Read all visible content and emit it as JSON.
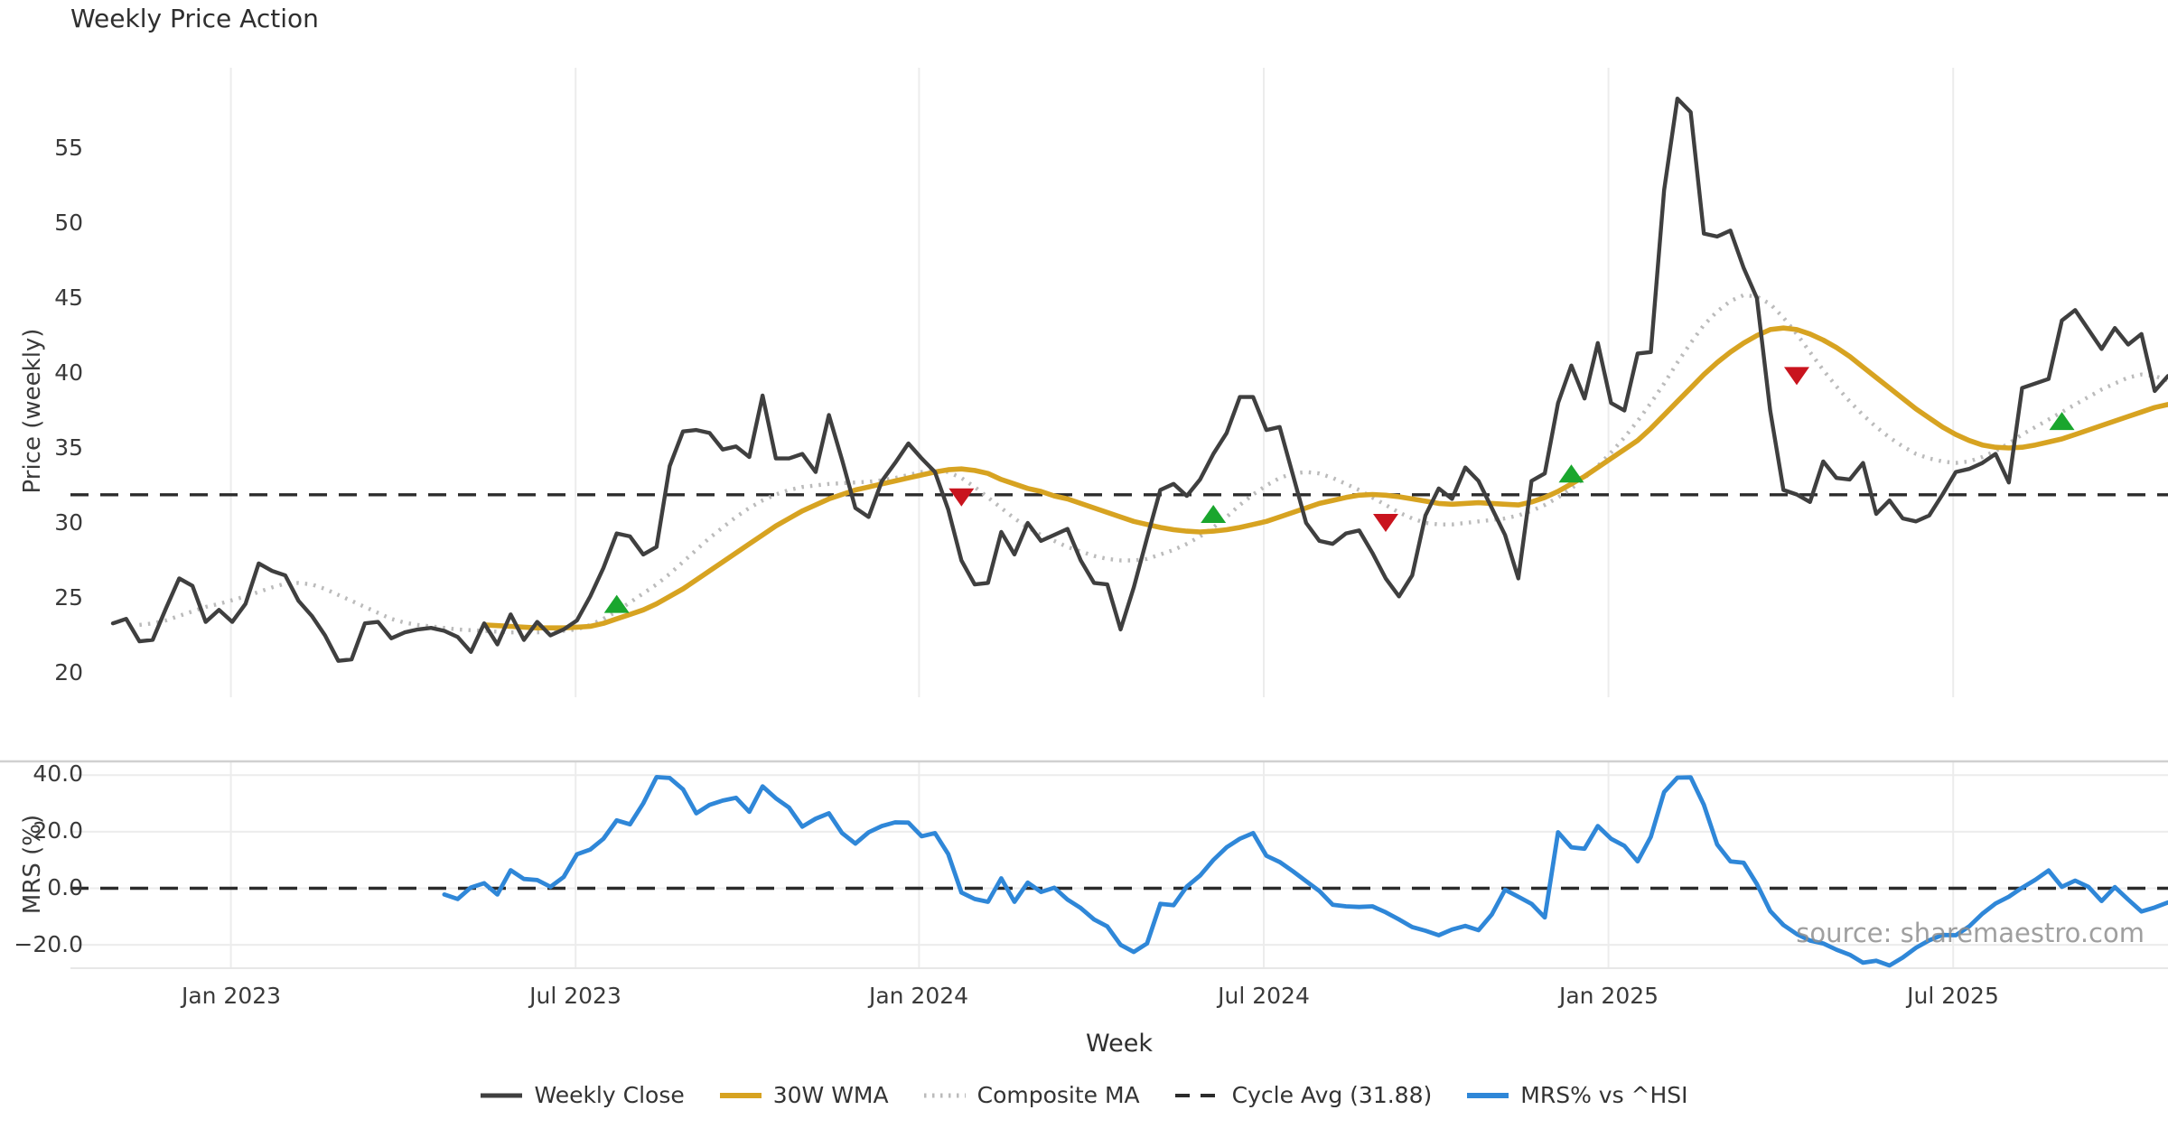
{
  "title": "Weekly Price Action",
  "source_note": "source: sharemaestro.com",
  "axes": {
    "price_label": "Price (weekly)",
    "price_ticks": [
      "55",
      "50",
      "45",
      "40",
      "35",
      "30",
      "25",
      "20"
    ],
    "mrs_label": "MRS (%)",
    "mrs_ticks": [
      "40.0",
      "20.0",
      "0.0",
      "−20.0"
    ],
    "x_label": "Week",
    "x_ticks": [
      "Jan 2023",
      "Jul 2023",
      "Jan 2024",
      "Jul 2024",
      "Jan 2025",
      "Jul 2025"
    ]
  },
  "legend": {
    "weekly_close": "Weekly Close",
    "wma": "30W WMA",
    "composite": "Composite MA",
    "cycle_avg": "Cycle Avg (31.88)",
    "mrs": "MRS% vs ^HSI"
  },
  "colors": {
    "close": "#3f3f3f",
    "wma": "#d7a321",
    "composite": "#bbbbbb",
    "cycle_avg": "#2b2b2b",
    "mrs": "#2f87d8",
    "buy_marker": "#1aa62e",
    "sell_marker": "#c9141e",
    "grid": "#ececec",
    "spine": "#d0d0d0"
  },
  "chart_data": [
    {
      "type": "line",
      "title": "Weekly Price Action",
      "xlabel": "Week",
      "ylabel": "Price (weekly)",
      "ylim": [
        18.5,
        60.4
      ],
      "grid": "vertical-only",
      "x_tick_labels": [
        "Jan 2023",
        "Jul 2023",
        "Jan 2024",
        "Jul 2024",
        "Jan 2025",
        "Jul 2025"
      ],
      "x_tick_weeks": [
        8.9,
        34.9,
        60.8,
        86.8,
        112.8,
        138.8
      ],
      "cycle_avg_value": 31.88,
      "series": [
        {
          "name": "Weekly Close",
          "start_week": 0,
          "values": [
            23.3,
            23.6,
            22.1,
            22.2,
            24.3,
            26.3,
            25.8,
            23.4,
            24.2,
            23.4,
            24.6,
            27.3,
            26.8,
            26.5,
            24.8,
            23.8,
            22.5,
            20.8,
            20.9,
            23.3,
            23.4,
            22.3,
            22.7,
            22.9,
            23.0,
            22.8,
            22.4,
            21.4,
            23.3,
            21.9,
            23.9,
            22.2,
            23.4,
            22.5,
            22.9,
            23.5,
            25.1,
            27.0,
            29.3,
            29.1,
            27.9,
            28.4,
            33.8,
            36.1,
            36.2,
            36.0,
            34.9,
            35.1,
            34.4,
            38.5,
            34.3,
            34.3,
            34.6,
            33.4,
            37.2,
            34.2,
            31.0,
            30.4,
            32.8,
            34.0,
            35.3,
            34.3,
            33.4,
            30.9,
            27.5,
            25.9,
            26.0,
            29.4,
            27.9,
            30.0,
            28.8,
            29.2,
            29.6,
            27.5,
            26.0,
            25.9,
            22.9,
            25.7,
            29.0,
            32.2,
            32.6,
            31.8,
            32.9,
            34.6,
            36.0,
            38.4,
            38.4,
            36.2,
            36.4,
            33.2,
            30.0,
            28.8,
            28.6,
            29.3,
            29.5,
            28.0,
            26.3,
            25.1,
            26.5,
            30.5,
            32.3,
            31.6,
            33.7,
            32.8,
            31.0,
            29.2,
            26.3,
            32.8,
            33.3,
            38.0,
            40.5,
            38.3,
            42.0,
            38.0,
            37.5,
            41.3,
            41.4,
            52.2,
            58.3,
            57.4,
            49.3,
            49.1,
            49.5,
            47.0,
            45.0,
            37.5,
            32.2,
            31.9,
            31.4,
            34.1,
            33.0,
            32.9,
            34.0,
            30.6,
            31.5,
            30.3,
            30.1,
            30.5,
            31.9,
            33.4,
            33.6,
            34.0,
            34.6,
            32.7,
            39.0,
            39.3,
            39.6,
            43.5,
            44.2,
            42.9,
            41.6,
            43.0,
            41.9,
            42.6,
            38.8,
            39.8
          ]
        },
        {
          "name": "30W WMA",
          "start_week": 28,
          "values": [
            23.2,
            23.15,
            23.1,
            23.05,
            23.0,
            23.0,
            23.0,
            23.05,
            23.1,
            23.3,
            23.6,
            23.9,
            24.2,
            24.6,
            25.1,
            25.6,
            26.2,
            26.8,
            27.4,
            28.0,
            28.6,
            29.2,
            29.8,
            30.3,
            30.8,
            31.2,
            31.6,
            31.9,
            32.2,
            32.4,
            32.6,
            32.8,
            33.0,
            33.2,
            33.4,
            33.55,
            33.6,
            33.5,
            33.3,
            32.9,
            32.6,
            32.3,
            32.1,
            31.8,
            31.6,
            31.3,
            31.0,
            30.7,
            30.4,
            30.1,
            29.9,
            29.7,
            29.55,
            29.45,
            29.4,
            29.45,
            29.55,
            29.7,
            29.9,
            30.1,
            30.4,
            30.7,
            31.0,
            31.3,
            31.5,
            31.7,
            31.85,
            31.9,
            31.85,
            31.75,
            31.6,
            31.45,
            31.3,
            31.25,
            31.3,
            31.35,
            31.3,
            31.25,
            31.2,
            31.4,
            31.7,
            32.1,
            32.6,
            33.1,
            33.7,
            34.3,
            34.9,
            35.5,
            36.3,
            37.2,
            38.1,
            39.0,
            39.9,
            40.7,
            41.4,
            42.0,
            42.5,
            42.9,
            43.0,
            42.9,
            42.6,
            42.2,
            41.7,
            41.1,
            40.4,
            39.7,
            39.0,
            38.3,
            37.6,
            37.0,
            36.4,
            35.9,
            35.5,
            35.2,
            35.05,
            35.0,
            35.05,
            35.2,
            35.4,
            35.6,
            35.9,
            36.2,
            36.5,
            36.8,
            37.1,
            37.4,
            37.7,
            37.9
          ]
        },
        {
          "name": "Composite MA",
          "start_week": 2,
          "values": [
            23.2,
            23.3,
            23.5,
            23.8,
            24.1,
            24.4,
            24.6,
            24.85,
            25.1,
            25.4,
            25.7,
            25.95,
            26.0,
            25.9,
            25.6,
            25.2,
            24.8,
            24.4,
            24.0,
            23.6,
            23.35,
            23.2,
            23.1,
            23.0,
            22.9,
            22.85,
            22.8,
            22.75,
            22.7,
            22.7,
            22.7,
            22.75,
            22.8,
            22.9,
            23.2,
            23.6,
            24.1,
            24.7,
            25.3,
            25.9,
            26.6,
            27.4,
            28.2,
            29.0,
            29.7,
            30.4,
            31.0,
            31.5,
            31.9,
            32.2,
            32.4,
            32.5,
            32.6,
            32.65,
            32.7,
            32.75,
            32.85,
            33.0,
            33.2,
            33.4,
            33.5,
            33.4,
            33.0,
            32.4,
            31.7,
            31.0,
            30.3,
            29.7,
            29.2,
            28.8,
            28.4,
            28.1,
            27.8,
            27.6,
            27.5,
            27.5,
            27.6,
            27.9,
            28.2,
            28.6,
            29.1,
            29.7,
            30.4,
            31.2,
            31.9,
            32.5,
            33.0,
            33.3,
            33.4,
            33.3,
            33.0,
            32.6,
            32.2,
            31.7,
            31.2,
            30.7,
            30.3,
            30.0,
            29.9,
            29.9,
            30.0,
            30.1,
            30.2,
            30.3,
            30.5,
            30.8,
            31.2,
            31.7,
            32.3,
            33.0,
            33.8,
            34.7,
            35.7,
            36.8,
            38.0,
            39.3,
            40.7,
            42.0,
            43.2,
            44.1,
            44.8,
            45.2,
            45.1,
            44.6,
            43.7,
            42.6,
            41.4,
            40.2,
            39.1,
            38.1,
            37.2,
            36.4,
            35.7,
            35.1,
            34.6,
            34.3,
            34.1,
            34.0,
            34.1,
            34.4,
            34.8,
            35.3,
            35.9,
            36.4,
            36.9,
            37.4,
            37.9,
            38.4,
            38.9,
            39.3,
            39.7,
            39.9,
            39.8,
            39.5
          ]
        }
      ],
      "signals": [
        {
          "week": 38,
          "price": 24.6,
          "type": "buy"
        },
        {
          "week": 64,
          "price": 31.7,
          "type": "sell"
        },
        {
          "week": 83,
          "price": 30.6,
          "type": "buy"
        },
        {
          "week": 96,
          "price": 30.0,
          "type": "sell"
        },
        {
          "week": 110,
          "price": 33.3,
          "type": "buy"
        },
        {
          "week": 127,
          "price": 39.8,
          "type": "sell"
        },
        {
          "week": 147,
          "price": 36.8,
          "type": "buy"
        }
      ]
    },
    {
      "type": "line",
      "ylabel": "MRS (%)",
      "ylim": [
        -28.5,
        45.0
      ],
      "grid": "horizontal-and-vertical",
      "y_gridlines": [
        40,
        20,
        0,
        -20
      ],
      "zero_line": 0,
      "series": [
        {
          "name": "MRS% vs ^HSI",
          "start_week": 25,
          "values": [
            -2.2,
            -3.8,
            0.3,
            1.8,
            -2.2,
            6.4,
            3.3,
            2.9,
            0.5,
            4.0,
            12.0,
            13.7,
            17.5,
            24.0,
            22.6,
            30.0,
            39.3,
            39.0,
            35.0,
            26.5,
            29.5,
            31.0,
            32.0,
            27.0,
            36.0,
            31.8,
            28.5,
            21.8,
            24.6,
            26.5,
            19.5,
            15.8,
            19.8,
            22.0,
            23.3,
            23.2,
            18.4,
            19.5,
            12.1,
            -1.5,
            -3.8,
            -4.8,
            3.5,
            -4.8,
            2.0,
            -1.3,
            0.2,
            -4.0,
            -7.0,
            -11.0,
            -13.5,
            -20.0,
            -22.5,
            -19.5,
            -5.5,
            -6.0,
            0.6,
            4.5,
            10.0,
            14.5,
            17.5,
            19.5,
            11.5,
            9.3,
            6.0,
            2.5,
            -1.0,
            -5.8,
            -6.4,
            -6.6,
            -6.4,
            -8.5,
            -11.0,
            -13.7,
            -15.0,
            -16.6,
            -14.6,
            -13.3,
            -14.8,
            -9.3,
            -0.5,
            -3.0,
            -5.5,
            -10.3,
            19.8,
            14.5,
            14.0,
            22.0,
            17.5,
            15.0,
            9.5,
            18.2,
            34.0,
            39.1,
            39.2,
            29.5,
            15.5,
            9.5,
            9.0,
            1.5,
            -8.0,
            -13.0,
            -16.2,
            -18.5,
            -19.5,
            -21.7,
            -23.5,
            -26.3,
            -25.6,
            -27.3,
            -24.5,
            -21.0,
            -18.4,
            -16.5,
            -16.6,
            -13.5,
            -9.0,
            -5.4,
            -3.0,
            0.2,
            3.0,
            6.3,
            0.5,
            2.7,
            0.5,
            -4.5,
            0.4,
            -4.0,
            -8.2,
            -6.8,
            -5.0
          ]
        }
      ]
    }
  ]
}
